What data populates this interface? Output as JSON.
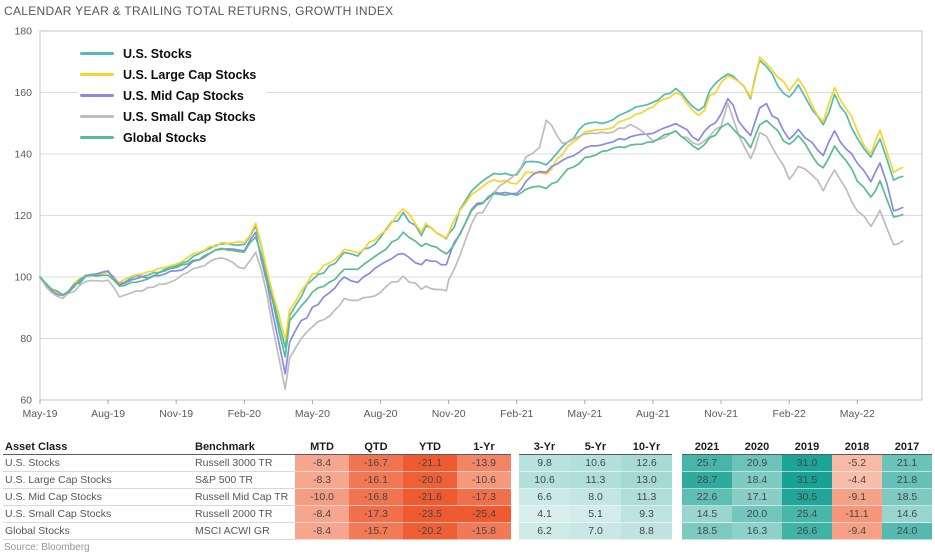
{
  "title": "CALENDAR YEAR & TRAILING TOTAL RETURNS, GROWTH INDEX",
  "source": "Source: Bloomberg",
  "colors": {
    "axis_text": "#58595b",
    "grid": "#dcdcdc",
    "plot_border": "#c6c6c6",
    "tick": "#a8a8a8"
  },
  "chart_data": {
    "type": "line",
    "title": "CALENDAR YEAR & TRAILING TOTAL RETURNS, GROWTH INDEX",
    "ylim": [
      60,
      180
    ],
    "y_ticks": [
      180,
      160,
      140,
      120,
      100,
      80,
      60
    ],
    "x_unit": "months-since-May-2019",
    "x_tick_positions": [
      0,
      3,
      6,
      9,
      12,
      15,
      18,
      21,
      24,
      27,
      30,
      33,
      36
    ],
    "x_tick_labels": [
      "May-19",
      "Aug-19",
      "Nov-19",
      "Feb-20",
      "May-20",
      "Aug-20",
      "Nov-20",
      "Feb-21",
      "May-21",
      "Aug-21",
      "Nov-21",
      "Feb-22",
      "May-22"
    ],
    "grid": "horizontal",
    "legend_position": "top-left-inside",
    "x": [
      0,
      0.5,
      1,
      2,
      3,
      3.5,
      4,
      5,
      6,
      7,
      8,
      9,
      9.5,
      10,
      10.8,
      11,
      12,
      13,
      13.4,
      14,
      15,
      16,
      16.8,
      17,
      17.9,
      18,
      19,
      20,
      21,
      21.4,
      22,
      22.3,
      23,
      24,
      25,
      26,
      27,
      28,
      29,
      30,
      30.3,
      31,
      31.3,
      31.7,
      32,
      33,
      33.4,
      34,
      34.5,
      35,
      36,
      36.6,
      37,
      37.6,
      38
    ],
    "series": [
      {
        "name": "U.S. Stocks",
        "color": "#52bcb2",
        "values": [
          100,
          95.8,
          94.2,
          100.1,
          101.6,
          97.8,
          99.6,
          101.4,
          103.6,
          107.5,
          110.7,
          110.6,
          116.5,
          101.5,
          77,
          87.5,
          99.1,
          104.4,
          108,
          106.8,
          112.9,
          121,
          113.5,
          116.6,
          112.5,
          114,
          127.9,
          133.7,
          133.2,
          137.5,
          137.3,
          136.5,
          142.3,
          149.7,
          150.4,
          154.2,
          156.8,
          161.3,
          154.1,
          164.6,
          166,
          162.1,
          158,
          170.5,
          168.4,
          158.5,
          162.5,
          154.5,
          149.5,
          159.4,
          145.1,
          139,
          144.9,
          131.5,
          132.7
        ]
      },
      {
        "name": "U.S. Large Cap Stocks",
        "color": "#fad42b",
        "values": [
          100,
          96.2,
          93.9,
          100.3,
          101.7,
          98.2,
          100.1,
          102,
          104.2,
          108,
          111.2,
          111.2,
          117.5,
          102,
          79.5,
          89.4,
          100.9,
          105.7,
          109,
          107.8,
          113.9,
          122.1,
          114.5,
          117.4,
          112.8,
          114.3,
          126.8,
          131.6,
          130.3,
          134,
          133.9,
          133.5,
          139.7,
          147.2,
          148.2,
          151.7,
          155.3,
          160,
          152.6,
          163.3,
          165.5,
          162.2,
          158.5,
          171.5,
          169.4,
          160.6,
          164.5,
          155.8,
          150.5,
          161.6,
          147.5,
          140,
          147.8,
          134,
          135.6
        ]
      },
      {
        "name": "U.S. Mid Cap Stocks",
        "color": "#8c89e4",
        "values": [
          100,
          95.5,
          94,
          100.5,
          102,
          97.5,
          99,
          100.5,
          102,
          105.5,
          109,
          108.5,
          114.5,
          98,
          68.5,
          78.9,
          90.2,
          96.5,
          100,
          98.2,
          104,
          107.6,
          104,
          105.6,
          104,
          106.2,
          121.9,
          127.6,
          127.2,
          131,
          134.3,
          134,
          137.9,
          142,
          143.5,
          145.6,
          146.7,
          149.9,
          144.4,
          153,
          158,
          148.5,
          146,
          155,
          156.4,
          144.8,
          148,
          143.8,
          139.5,
          147.5,
          137,
          131,
          137.1,
          121.5,
          122.6
        ]
      },
      {
        "name": "U.S. Small Cap Stocks",
        "color": "#bdbdbd",
        "values": [
          100,
          95,
          93,
          98.5,
          99,
          93.5,
          94.8,
          96.7,
          99.2,
          103.2,
          106.2,
          102.8,
          108,
          94.2,
          63.5,
          73.7,
          83.8,
          89.3,
          93,
          92.4,
          95,
          100.3,
          96,
          97,
          95.5,
          99,
          117.2,
          127.4,
          133.8,
          139,
          142.1,
          151,
          143.5,
          146.5,
          146.8,
          149.6,
          144.2,
          147.4,
          143,
          149,
          156.5,
          142.7,
          138.5,
          147,
          145.8,
          131.8,
          136,
          133.2,
          128,
          134.8,
          121.5,
          116.5,
          121.7,
          110.5,
          111.7
        ]
      },
      {
        "name": "Global Stocks",
        "color": "#57bd92",
        "values": [
          100,
          96,
          94.1,
          100.3,
          100.6,
          97,
          98.2,
          100.3,
          103.1,
          105.6,
          109.3,
          108.1,
          113,
          99.3,
          74,
          85.9,
          95.1,
          99.3,
          102.5,
          102.5,
          107.9,
          114.6,
          110,
          110.9,
          107.5,
          108.2,
          121.5,
          127.1,
          126.6,
          128.5,
          129.5,
          128.8,
          133,
          138.9,
          141.1,
          142.9,
          143.9,
          147.5,
          141.5,
          148.7,
          150,
          145.1,
          142,
          149.5,
          150.9,
          143.2,
          146,
          139.5,
          135.5,
          142.6,
          131.2,
          126,
          131.3,
          119.5,
          120.3
        ]
      }
    ]
  },
  "table": {
    "headers": [
      "Asset Class",
      "Benchmark",
      "MTD",
      "QTD",
      "YTD",
      "1-Yr",
      "3-Yr",
      "5-Yr",
      "10-Yr",
      "2021",
      "2020",
      "2019",
      "2018",
      "2017"
    ],
    "rows": [
      {
        "asset_class": "U.S. Stocks",
        "benchmark": "Russell 3000 TR",
        "values": [
          "-8.4",
          "-16.7",
          "-21.1",
          "-13.9",
          "9.8",
          "10.6",
          "12.6",
          "25.7",
          "20.9",
          "31.0",
          "-5.2",
          "21.1"
        ]
      },
      {
        "asset_class": "U.S. Large Cap Stocks",
        "benchmark": "S&P 500 TR",
        "values": [
          "-8.3",
          "-16.1",
          "-20.0",
          "-10.6",
          "10.6",
          "11.3",
          "13.0",
          "28.7",
          "18.4",
          "31.5",
          "-4.4",
          "21.8"
        ]
      },
      {
        "asset_class": "U.S. Mid Cap Stocks",
        "benchmark": "Russell Mid Cap TR",
        "values": [
          "-10.0",
          "-16.8",
          "-21.6",
          "-17.3",
          "6.6",
          "8.0",
          "11.3",
          "22.6",
          "17.1",
          "30.5",
          "-9.1",
          "18.5"
        ]
      },
      {
        "asset_class": "U.S. Small Cap Stocks",
        "benchmark": "Russell 2000 TR",
        "values": [
          "-8.4",
          "-17.3",
          "-23.5",
          "-25.4",
          "4.1",
          "5.1",
          "9.3",
          "14.5",
          "20.0",
          "25.4",
          "-11.1",
          "14.6"
        ]
      },
      {
        "asset_class": "Global Stocks",
        "benchmark": "MSCI ACWI GR",
        "values": [
          "-8.4",
          "-15.7",
          "-20.2",
          "-15.8",
          "6.2",
          "7.0",
          "8.8",
          "18.5",
          "16.3",
          "26.6",
          "-9.4",
          "24.0"
        ]
      }
    ],
    "heatmap": {
      "positive_low": "#e9f5f3",
      "positive_high": "#18a294",
      "positive_scale_max": 31.5,
      "negative_low": "#fbd9cc",
      "negative_high": "#ef5a30",
      "negative_scale_max": 21
    }
  }
}
